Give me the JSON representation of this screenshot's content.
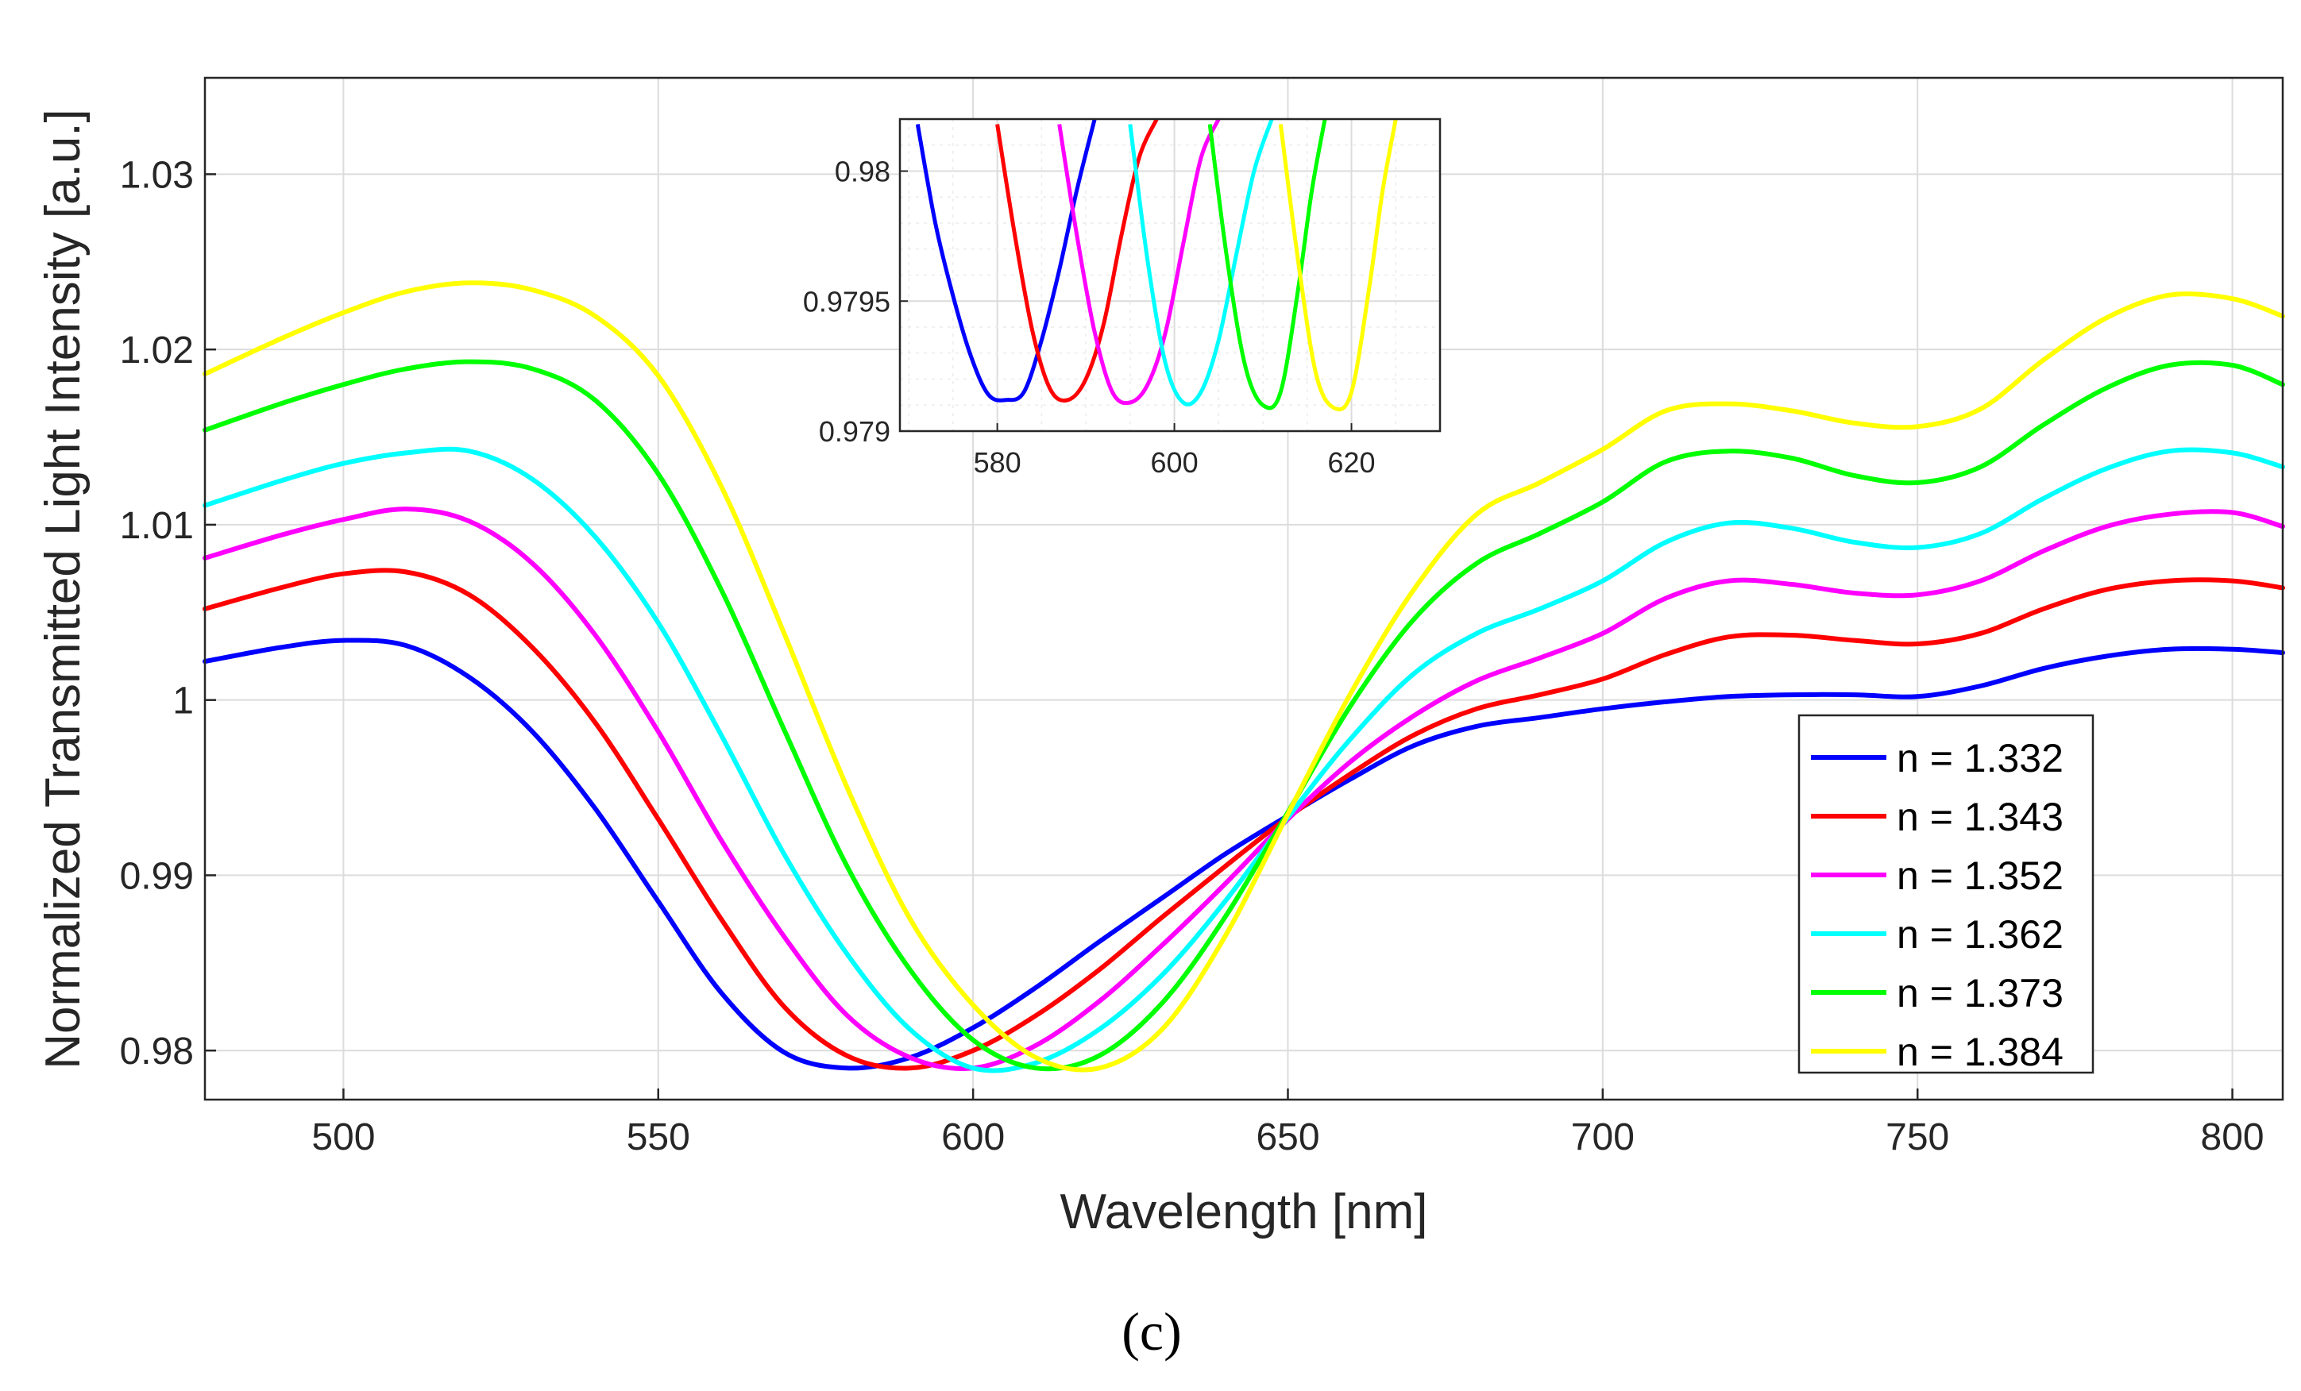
{
  "chart_data": [
    {
      "type": "line",
      "title": "",
      "xlabel": "Wavelength [nm]",
      "ylabel": "Normalized Transmitted Light Intensity [a.u.]",
      "xlim": [
        478,
        808
      ],
      "ylim": [
        0.9772,
        1.0355
      ],
      "xticks": [
        500,
        550,
        600,
        650,
        700,
        750,
        800
      ],
      "xtick_labels": [
        "500",
        "550",
        "600",
        "650",
        "700",
        "750",
        "800"
      ],
      "yticks": [
        0.98,
        0.99,
        1.0,
        1.01,
        1.02,
        1.03
      ],
      "ytick_labels": [
        "0.98",
        "0.99",
        "1",
        "1.01",
        "1.02",
        "1.03"
      ],
      "grid": true,
      "legend_position": "bottom-right",
      "x": [
        478,
        490,
        500,
        510,
        520,
        530,
        540,
        550,
        560,
        570,
        580,
        590,
        600,
        610,
        620,
        630,
        640,
        650,
        660,
        670,
        680,
        690,
        700,
        710,
        720,
        730,
        740,
        750,
        760,
        770,
        780,
        790,
        800,
        808
      ],
      "series": [
        {
          "name": "n = 1.332",
          "color": "#0000ff",
          "values": [
            1.0022,
            1.003,
            1.0034,
            1.0031,
            1.0013,
            0.9982,
            0.9938,
            0.9885,
            0.9833,
            0.9799,
            0.979,
            0.9796,
            0.9813,
            0.9836,
            0.9862,
            0.9887,
            0.9912,
            0.9934,
            0.9955,
            0.9974,
            0.9985,
            0.999,
            0.9995,
            0.9999,
            1.0002,
            1.0003,
            1.0003,
            1.0002,
            1.0008,
            1.0018,
            1.0025,
            1.0029,
            1.0029,
            1.0027
          ]
        },
        {
          "name": "n = 1.343",
          "color": "#ff0000",
          "values": [
            1.0052,
            1.0064,
            1.0072,
            1.0073,
            1.006,
            1.003,
            0.9987,
            0.9932,
            0.9875,
            0.9825,
            0.9797,
            0.979,
            0.98,
            0.982,
            0.9846,
            0.9876,
            0.9905,
            0.9933,
            0.9958,
            0.998,
            0.9995,
            1.0003,
            1.0012,
            1.0026,
            1.0036,
            1.0037,
            1.0034,
            1.0032,
            1.0038,
            1.0052,
            1.0063,
            1.0068,
            1.0068,
            1.0064
          ]
        },
        {
          "name": "n = 1.352",
          "color": "#ff00ff",
          "values": [
            1.0081,
            1.0094,
            1.0103,
            1.0109,
            1.0102,
            1.0078,
            1.0037,
            0.9982,
            0.992,
            0.9865,
            0.982,
            0.9796,
            0.979,
            0.9803,
            0.9828,
            0.986,
            0.9895,
            0.9932,
            0.9965,
            0.9991,
            1.0011,
            1.0024,
            1.0038,
            1.0058,
            1.0068,
            1.0066,
            1.0061,
            1.006,
            1.0068,
            1.0085,
            1.0099,
            1.0106,
            1.0107,
            1.0099
          ]
        },
        {
          "name": "n = 1.362",
          "color": "#00ffff",
          "values": [
            1.0111,
            1.0125,
            1.0135,
            1.0141,
            1.0142,
            1.0126,
            1.0093,
            1.0044,
            0.998,
            0.9912,
            0.9855,
            0.9812,
            0.979,
            0.9793,
            0.9812,
            0.9843,
            0.9885,
            0.9933,
            0.9978,
            1.0015,
            1.0038,
            1.0052,
            1.0068,
            1.009,
            1.0101,
            1.0098,
            1.009,
            1.0087,
            1.0095,
            1.0115,
            1.0132,
            1.0142,
            1.0141,
            1.0133
          ]
        },
        {
          "name": "n = 1.373",
          "color": "#00ff00",
          "values": [
            1.0154,
            1.0169,
            1.018,
            1.0189,
            1.0193,
            1.0189,
            1.0171,
            1.0129,
            1.0063,
            0.9983,
            0.9905,
            0.9846,
            0.9806,
            0.979,
            0.9797,
            0.9827,
            0.9876,
            0.9936,
            0.9997,
            1.0046,
            1.0078,
            1.0095,
            1.0113,
            1.0136,
            1.0142,
            1.0138,
            1.0128,
            1.0124,
            1.0133,
            1.0157,
            1.0178,
            1.0191,
            1.0191,
            1.018
          ]
        },
        {
          "name": "n = 1.384",
          "color": "#ffff00",
          "values": [
            1.0186,
            1.0206,
            1.0221,
            1.0233,
            1.0238,
            1.0234,
            1.0219,
            1.0185,
            1.0122,
            1.0038,
            0.995,
            0.9875,
            0.9826,
            0.9796,
            0.979,
            0.9812,
            0.9865,
            0.9935,
            1.0004,
            1.0063,
            1.0106,
            1.0124,
            1.0143,
            1.0165,
            1.0169,
            1.0165,
            1.0158,
            1.0156,
            1.0166,
            1.0194,
            1.0218,
            1.0231,
            1.0229,
            1.0219
          ]
        }
      ],
      "legend": [
        "n = 1.332",
        "n = 1.343",
        "n = 1.352",
        "n = 1.362",
        "n = 1.373",
        "n = 1.384"
      ]
    },
    {
      "type": "line",
      "title": "inset",
      "xlim": [
        569,
        630
      ],
      "ylim": [
        0.979,
        0.9802
      ],
      "xticks": [
        580,
        600,
        620
      ],
      "xtick_labels": [
        "580",
        "600",
        "620"
      ],
      "yticks": [
        0.979,
        0.9795,
        0.98
      ],
      "ytick_labels": [
        "0.979",
        "0.9795",
        "0.98"
      ],
      "grid": true,
      "series": [
        {
          "name": "n = 1.332",
          "color": "#0000ff",
          "x": [
            571,
            573,
            575,
            577,
            579,
            581,
            583,
            585,
            587,
            589,
            591
          ],
          "values": [
            0.98018,
            0.9798,
            0.97952,
            0.97929,
            0.97914,
            0.97912,
            0.97915,
            0.97935,
            0.97962,
            0.97993,
            0.9802
          ]
        },
        {
          "name": "n = 1.343",
          "color": "#ff0000",
          "x": [
            580,
            582,
            584,
            586,
            588,
            590,
            592,
            594,
            596,
            598
          ],
          "values": [
            0.98018,
            0.97975,
            0.97938,
            0.97916,
            0.97912,
            0.9792,
            0.97941,
            0.97975,
            0.98005,
            0.9802
          ]
        },
        {
          "name": "n = 1.352",
          "color": "#ff00ff",
          "x": [
            587,
            589,
            591,
            593,
            595,
            597,
            599,
            601,
            603,
            605
          ],
          "values": [
            0.98018,
            0.97975,
            0.97938,
            0.97915,
            0.97911,
            0.97918,
            0.97938,
            0.97972,
            0.98005,
            0.9802
          ]
        },
        {
          "name": "n = 1.362",
          "color": "#00ffff",
          "x": [
            595,
            597,
            599,
            601,
            603,
            605,
            607,
            609,
            611
          ],
          "values": [
            0.98018,
            0.97965,
            0.97926,
            0.97911,
            0.97915,
            0.97935,
            0.97968,
            0.98,
            0.9802
          ]
        },
        {
          "name": "n = 1.373",
          "color": "#00ff00",
          "x": [
            604,
            606,
            608,
            610,
            612,
            614,
            615.5,
            617
          ],
          "values": [
            0.98018,
            0.97965,
            0.97925,
            0.9791,
            0.97915,
            0.97955,
            0.97992,
            0.9802
          ]
        },
        {
          "name": "n = 1.384",
          "color": "#ffff00",
          "x": [
            612,
            614,
            616,
            618,
            620,
            622,
            623.5,
            625
          ],
          "values": [
            0.98018,
            0.97965,
            0.97922,
            0.97909,
            0.97915,
            0.97955,
            0.97992,
            0.9802
          ]
        }
      ]
    }
  ],
  "caption": "(c)"
}
